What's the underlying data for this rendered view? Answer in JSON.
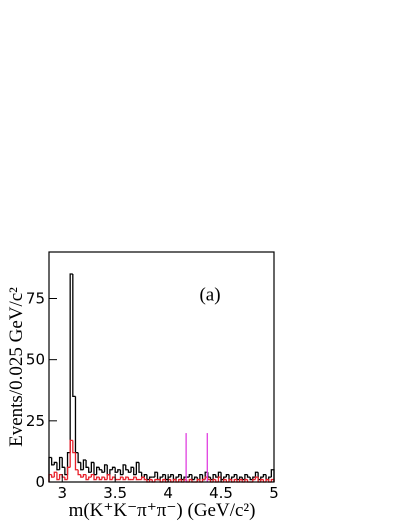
{
  "chart_data": {
    "type": "histogram",
    "annotation": "(a)",
    "x_label": "m(K⁺K⁻π⁺π⁻) (GeV/c²)",
    "y_label": "Events/0.025 GeV/c²",
    "xlim": [
      2.875,
      5
    ],
    "ylim": [
      0,
      94
    ],
    "xticks": [
      3,
      3.5,
      4,
      4.5,
      5
    ],
    "yticks": [
      0,
      25,
      50,
      75
    ],
    "bins": [
      2.875,
      2.9,
      2.925,
      2.95,
      2.975,
      3,
      3.025,
      3.05,
      3.075,
      3.1,
      3.125,
      3.15,
      3.175,
      3.2,
      3.225,
      3.25,
      3.275,
      3.3,
      3.325,
      3.35,
      3.375,
      3.4,
      3.425,
      3.45,
      3.475,
      3.5,
      3.525,
      3.55,
      3.575,
      3.6,
      3.625,
      3.65,
      3.675,
      3.7,
      3.725,
      3.75,
      3.775,
      3.8,
      3.825,
      3.85,
      3.875,
      3.9,
      3.925,
      3.95,
      3.975,
      4,
      4.025,
      4.05,
      4.075,
      4.1,
      4.125,
      4.15,
      4.175,
      4.2,
      4.225,
      4.25,
      4.275,
      4.3,
      4.325,
      4.35,
      4.375,
      4.4,
      4.425,
      4.45,
      4.475,
      4.5,
      4.525,
      4.55,
      4.575,
      4.6,
      4.625,
      4.65,
      4.675,
      4.7,
      4.725,
      4.75,
      4.775,
      4.8,
      4.825,
      4.85,
      4.875,
      4.9,
      4.925,
      4.95,
      4.975,
      5
    ],
    "series": [
      {
        "color": "#000000",
        "values": [
          10,
          7,
          8,
          5,
          10,
          6,
          3,
          12,
          85,
          35,
          12,
          8,
          5,
          9,
          6,
          4,
          8,
          3,
          6,
          5,
          4,
          7,
          3,
          5,
          6,
          4,
          5,
          3,
          7,
          5,
          4,
          6,
          3,
          8,
          4,
          2,
          3,
          1,
          2,
          2,
          4,
          1,
          2,
          3,
          1,
          2,
          3,
          1,
          2,
          3,
          1,
          2,
          2,
          3,
          1,
          2,
          1,
          3,
          1,
          4,
          2,
          1,
          3,
          2,
          4,
          1,
          2,
          3,
          1,
          2,
          3,
          1,
          2,
          1,
          3,
          2,
          1,
          2,
          4,
          1,
          2,
          3,
          1,
          2,
          5
        ]
      },
      {
        "color": "#e8202a",
        "values": [
          3,
          2,
          4,
          1,
          3,
          2,
          1,
          6,
          17,
          12,
          5,
          3,
          2,
          3,
          1,
          2,
          3,
          1,
          2,
          1,
          2,
          1,
          3,
          1,
          2,
          1,
          1,
          2,
          1,
          2,
          1,
          1,
          2,
          1,
          1,
          2,
          1,
          0,
          1,
          0,
          1,
          1,
          0,
          1,
          0,
          1,
          0,
          1,
          0,
          1,
          0,
          1,
          0,
          1,
          0,
          0,
          1,
          0,
          1,
          2,
          1,
          0,
          1,
          0,
          2,
          0,
          1,
          0,
          1,
          0,
          1,
          0,
          1,
          0,
          1,
          0,
          0,
          1,
          2,
          0,
          1,
          0,
          1,
          0,
          1
        ]
      }
    ],
    "vlines": {
      "color": "#e040e0",
      "x": [
        4.17,
        4.37
      ],
      "values": [
        20,
        20
      ]
    }
  }
}
